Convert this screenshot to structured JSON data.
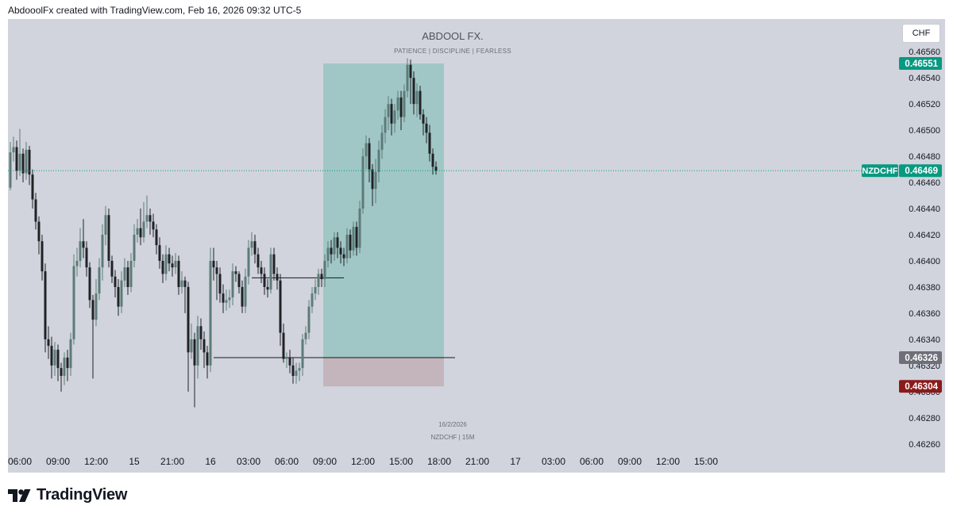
{
  "header": {
    "caption": "AbdooolFx created with TradingView.com, Feb 16, 2026 09:32 UTC-5"
  },
  "watermark": {
    "title": "ABDOOL FX.",
    "subtitle": "PATIENCE   |   DISCIPLINE   |   FEARLESS",
    "date": "16/2/2026",
    "symbol_tf": "NZDCHF | 15M"
  },
  "currency_button": "CHF",
  "footer": {
    "brand": "TradingView",
    "logo_icon": "tradingview-logo-icon"
  },
  "colors": {
    "background": "#d1d4dc",
    "candle_up": "#5d7b78",
    "candle_down": "#202226",
    "profit_zone": "#a0c7c6",
    "loss_zone": "#c3b5bb",
    "last_price": "#089981",
    "target": "#089981",
    "entry": "#6e7079",
    "stop": "#8b1a1a"
  },
  "chart_data": {
    "type": "candlestick",
    "symbol": "NZDCHF",
    "timeframe": "15M",
    "y_range": [
      0.46255,
      0.46585
    ],
    "y_ticks": [
      "0.46560",
      "0.46540",
      "0.46520",
      "0.46500",
      "0.46480",
      "0.46460",
      "0.46440",
      "0.46420",
      "0.46400",
      "0.46380",
      "0.46360",
      "0.46340",
      "0.46320",
      "0.46300",
      "0.46280",
      "0.46260"
    ],
    "x_ticks": [
      {
        "label": "06:00",
        "i": 3
      },
      {
        "label": "09:00",
        "i": 15
      },
      {
        "label": "12:00",
        "i": 27
      },
      {
        "label": "15",
        "i": 39
      },
      {
        "label": "21:00",
        "i": 51
      },
      {
        "label": "16",
        "i": 63
      },
      {
        "label": "03:00",
        "i": 75
      },
      {
        "label": "06:00",
        "i": 87
      },
      {
        "label": "09:00",
        "i": 99
      },
      {
        "label": "12:00",
        "i": 111
      },
      {
        "label": "15:00",
        "i": 123
      },
      {
        "label": "18:00",
        "i": 135
      },
      {
        "label": "21:00",
        "i": 147
      },
      {
        "label": "17",
        "i": 159
      },
      {
        "label": "03:00",
        "i": 171
      },
      {
        "label": "06:00",
        "i": 183
      },
      {
        "label": "09:00",
        "i": 195
      },
      {
        "label": "12:00",
        "i": 207
      },
      {
        "label": "15:00",
        "i": 219
      }
    ],
    "candles": [
      [
        0.46456,
        0.46483,
        0.46491,
        0.46454
      ],
      [
        0.46483,
        0.46487,
        0.46495,
        0.46476
      ],
      [
        0.46487,
        0.46469,
        0.46492,
        0.46462
      ],
      [
        0.46469,
        0.46482,
        0.46501,
        0.46465
      ],
      [
        0.46482,
        0.46467,
        0.46486,
        0.4646
      ],
      [
        0.46467,
        0.46485,
        0.46491,
        0.46462
      ],
      [
        0.46485,
        0.46466,
        0.46488,
        0.46458
      ],
      [
        0.46466,
        0.46447,
        0.4647,
        0.4644
      ],
      [
        0.46447,
        0.4643,
        0.46452,
        0.46424
      ],
      [
        0.4643,
        0.46415,
        0.46434,
        0.46405
      ],
      [
        0.46415,
        0.46392,
        0.4642,
        0.46385
      ],
      [
        0.46392,
        0.4634,
        0.46398,
        0.4633
      ],
      [
        0.4634,
        0.46335,
        0.4635,
        0.46325
      ],
      [
        0.46335,
        0.4632,
        0.46342,
        0.4631
      ],
      [
        0.4632,
        0.46332,
        0.46338,
        0.46312
      ],
      [
        0.46332,
        0.46318,
        0.46336,
        0.46308
      ],
      [
        0.46318,
        0.46312,
        0.46322,
        0.463
      ],
      [
        0.46312,
        0.46326,
        0.4633,
        0.46305
      ],
      [
        0.46326,
        0.46318,
        0.46332,
        0.46308
      ],
      [
        0.46318,
        0.4634,
        0.46345,
        0.46312
      ],
      [
        0.4634,
        0.46396,
        0.46405,
        0.46336
      ],
      [
        0.46396,
        0.464,
        0.4641,
        0.46388
      ],
      [
        0.464,
        0.46415,
        0.46425,
        0.46395
      ],
      [
        0.46415,
        0.4641,
        0.46432,
        0.46402
      ],
      [
        0.4641,
        0.46395,
        0.46415,
        0.46388
      ],
      [
        0.46395,
        0.4637,
        0.46399,
        0.46364
      ],
      [
        0.4637,
        0.46355,
        0.46374,
        0.4631
      ],
      [
        0.46355,
        0.46375,
        0.46386,
        0.4635
      ],
      [
        0.46375,
        0.46395,
        0.46402,
        0.4637
      ],
      [
        0.46395,
        0.4642,
        0.46428,
        0.46385
      ],
      [
        0.4642,
        0.46435,
        0.46442,
        0.46412
      ],
      [
        0.46435,
        0.464,
        0.4644,
        0.46395
      ],
      [
        0.464,
        0.46388,
        0.46404,
        0.46383
      ],
      [
        0.46388,
        0.4638,
        0.46393,
        0.46372
      ],
      [
        0.4638,
        0.46365,
        0.46386,
        0.46358
      ],
      [
        0.46365,
        0.46385,
        0.46392,
        0.4636
      ],
      [
        0.46385,
        0.46395,
        0.46402,
        0.4638
      ],
      [
        0.46395,
        0.4638,
        0.464,
        0.46374
      ],
      [
        0.4638,
        0.464,
        0.46406,
        0.46376
      ],
      [
        0.464,
        0.4642,
        0.46428,
        0.46395
      ],
      [
        0.4642,
        0.46425,
        0.46432,
        0.46414
      ],
      [
        0.46425,
        0.46418,
        0.4644,
        0.46412
      ],
      [
        0.46418,
        0.4643,
        0.46445,
        0.46414
      ],
      [
        0.4643,
        0.46435,
        0.4645,
        0.46425
      ],
      [
        0.46435,
        0.4643,
        0.4644,
        0.4642
      ],
      [
        0.4643,
        0.46424,
        0.46436,
        0.46418
      ],
      [
        0.46424,
        0.46412,
        0.46428,
        0.46405
      ],
      [
        0.46412,
        0.464,
        0.46418,
        0.46394
      ],
      [
        0.464,
        0.4639,
        0.46405,
        0.46383
      ],
      [
        0.4639,
        0.46405,
        0.46412,
        0.46385
      ],
      [
        0.46405,
        0.46398,
        0.4641,
        0.46392
      ],
      [
        0.46398,
        0.46395,
        0.46404,
        0.46388
      ],
      [
        0.46395,
        0.464,
        0.46406,
        0.4639
      ],
      [
        0.464,
        0.4638,
        0.46404,
        0.46374
      ],
      [
        0.4638,
        0.46385,
        0.46392,
        0.46375
      ],
      [
        0.46385,
        0.4638,
        0.46388,
        0.4636
      ],
      [
        0.4638,
        0.4633,
        0.46384,
        0.463
      ],
      [
        0.4633,
        0.4634,
        0.46352,
        0.46325
      ],
      [
        0.4634,
        0.4632,
        0.46345,
        0.46288
      ],
      [
        0.4632,
        0.4635,
        0.46358,
        0.4631
      ],
      [
        0.4635,
        0.4634,
        0.46356,
        0.46332
      ],
      [
        0.4634,
        0.4633,
        0.46346,
        0.46318
      ],
      [
        0.4633,
        0.4632,
        0.46335,
        0.4631
      ],
      [
        0.4632,
        0.464,
        0.4641,
        0.46315
      ],
      [
        0.464,
        0.46395,
        0.4641,
        0.46385
      ],
      [
        0.46395,
        0.4639,
        0.464,
        0.4637
      ],
      [
        0.4639,
        0.46375,
        0.46395,
        0.46368
      ],
      [
        0.46375,
        0.46368,
        0.46382,
        0.4636
      ],
      [
        0.46368,
        0.4637,
        0.46378,
        0.46362
      ],
      [
        0.4637,
        0.46372,
        0.46378,
        0.46364
      ],
      [
        0.46372,
        0.46392,
        0.46398,
        0.46366
      ],
      [
        0.46392,
        0.4639,
        0.46396,
        0.46384
      ],
      [
        0.4639,
        0.4638,
        0.46392,
        0.46375
      ],
      [
        0.4638,
        0.46365,
        0.46385,
        0.4636
      ],
      [
        0.46365,
        0.46388,
        0.46394,
        0.4636
      ],
      [
        0.46388,
        0.4641,
        0.46416,
        0.46382
      ],
      [
        0.4641,
        0.46415,
        0.46422,
        0.46404
      ],
      [
        0.46415,
        0.46405,
        0.4642,
        0.46398
      ],
      [
        0.46405,
        0.46395,
        0.4641,
        0.4639
      ],
      [
        0.46395,
        0.4639,
        0.464,
        0.46383
      ],
      [
        0.4639,
        0.4638,
        0.46395,
        0.46374
      ],
      [
        0.4638,
        0.46378,
        0.46386,
        0.46372
      ],
      [
        0.46378,
        0.46405,
        0.4641,
        0.46375
      ],
      [
        0.46405,
        0.4639,
        0.4641,
        0.46385
      ],
      [
        0.4639,
        0.46385,
        0.46395,
        0.46378
      ],
      [
        0.46385,
        0.46345,
        0.4639,
        0.46335
      ],
      [
        0.46345,
        0.46325,
        0.46352,
        0.46322
      ],
      [
        0.46325,
        0.46326,
        0.4633,
        0.46318
      ],
      [
        0.46326,
        0.4632,
        0.46332,
        0.46314
      ],
      [
        0.4632,
        0.46312,
        0.46326,
        0.46306
      ],
      [
        0.46312,
        0.46316,
        0.46322,
        0.46306
      ],
      [
        0.46316,
        0.46318,
        0.46322,
        0.46308
      ],
      [
        0.46318,
        0.4634,
        0.46344,
        0.46312
      ],
      [
        0.4634,
        0.46345,
        0.4635,
        0.46336
      ],
      [
        0.46345,
        0.46365,
        0.4637,
        0.4634
      ],
      [
        0.46365,
        0.46375,
        0.4638,
        0.4636
      ],
      [
        0.46375,
        0.4638,
        0.46386,
        0.4637
      ],
      [
        0.4638,
        0.4639,
        0.46394,
        0.46374
      ],
      [
        0.4639,
        0.46386,
        0.46394,
        0.4638
      ],
      [
        0.46386,
        0.464,
        0.46405,
        0.4638
      ],
      [
        0.464,
        0.4641,
        0.46415,
        0.46395
      ],
      [
        0.4641,
        0.46405,
        0.46416,
        0.46398
      ],
      [
        0.46405,
        0.46418,
        0.46422,
        0.464
      ],
      [
        0.46418,
        0.4641,
        0.46422,
        0.46402
      ],
      [
        0.4641,
        0.46405,
        0.46415,
        0.46398
      ],
      [
        0.46405,
        0.46402,
        0.4641,
        0.46396
      ],
      [
        0.46402,
        0.4642,
        0.46425,
        0.46398
      ],
      [
        0.4642,
        0.46408,
        0.46424,
        0.46402
      ],
      [
        0.46408,
        0.46426,
        0.4643,
        0.46404
      ],
      [
        0.46426,
        0.4641,
        0.4643,
        0.46404
      ],
      [
        0.4641,
        0.4644,
        0.46446,
        0.46406
      ],
      [
        0.4644,
        0.4648,
        0.46486,
        0.46436
      ],
      [
        0.4648,
        0.4649,
        0.46496,
        0.4647
      ],
      [
        0.4649,
        0.4647,
        0.46494,
        0.4646
      ],
      [
        0.4647,
        0.46455,
        0.46474,
        0.46442
      ],
      [
        0.46455,
        0.46468,
        0.46478,
        0.46444
      ],
      [
        0.46468,
        0.46485,
        0.46492,
        0.4646
      ],
      [
        0.46485,
        0.46498,
        0.46504,
        0.46478
      ],
      [
        0.46498,
        0.4651,
        0.46516,
        0.4649
      ],
      [
        0.4651,
        0.4652,
        0.46526,
        0.465
      ],
      [
        0.4652,
        0.46505,
        0.46524,
        0.46496
      ],
      [
        0.46505,
        0.46515,
        0.4652,
        0.46498
      ],
      [
        0.46515,
        0.46525,
        0.4653,
        0.46508
      ],
      [
        0.46525,
        0.4651,
        0.4653,
        0.465
      ],
      [
        0.4651,
        0.4653,
        0.46535,
        0.46506
      ],
      [
        0.4653,
        0.4655,
        0.46555,
        0.46525
      ],
      [
        0.4655,
        0.4654,
        0.46554,
        0.4652
      ],
      [
        0.4654,
        0.4652,
        0.46545,
        0.46512
      ],
      [
        0.4652,
        0.4653,
        0.46536,
        0.4651
      ],
      [
        0.4653,
        0.46512,
        0.46534,
        0.46508
      ],
      [
        0.46512,
        0.46505,
        0.46516,
        0.46496
      ],
      [
        0.46505,
        0.46498,
        0.4651,
        0.4649
      ],
      [
        0.46498,
        0.46482,
        0.46504,
        0.46476
      ],
      [
        0.46482,
        0.46472,
        0.46486,
        0.46466
      ],
      [
        0.46472,
        0.46469,
        0.46476,
        0.46466
      ]
    ],
    "position": {
      "type": "long",
      "target_price": 0.46551,
      "target_label": "0.46551",
      "entry_price": 0.46326,
      "entry_label": "0.46326",
      "stop_price": 0.46304,
      "stop_label": "0.46304",
      "start_index": 99,
      "end_index": 136
    },
    "horizontal_lines": [
      {
        "price": 0.46387,
        "from_index": 76,
        "to_index": 105
      },
      {
        "price": 0.46326,
        "from_index": 64,
        "to_index": 140
      }
    ],
    "last_price": {
      "value": 0.46469,
      "label": "0.46469",
      "symbol_label": "NZDCHF"
    }
  }
}
